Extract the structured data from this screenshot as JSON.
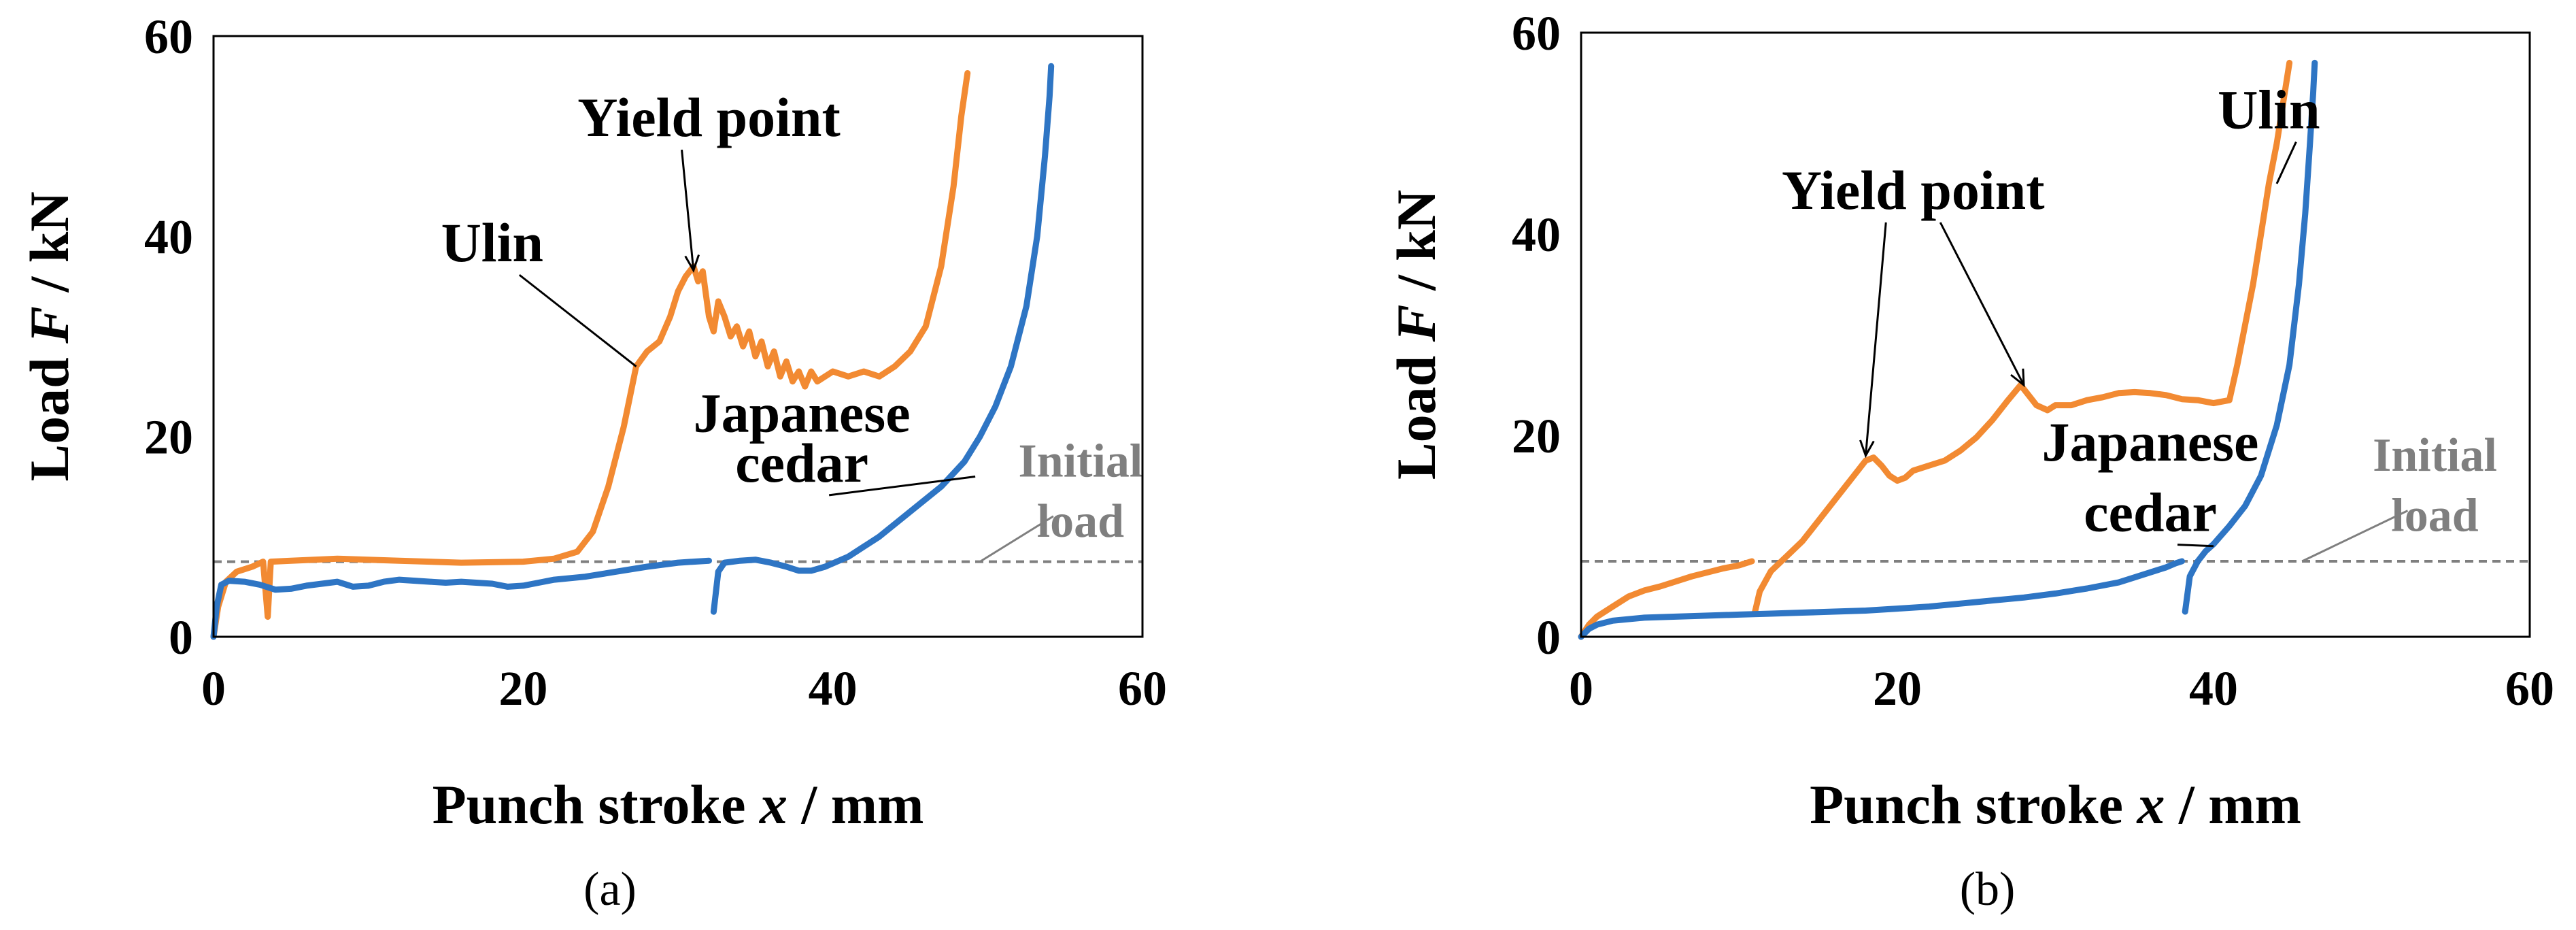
{
  "chart_data": [
    {
      "type": "line",
      "panel": "(a)",
      "xlabel_prefix": "Punch stroke ",
      "xlabel_var": "x",
      "xlabel_suffix": " / mm",
      "ylabel_prefix": "Load ",
      "ylabel_var": "F",
      "ylabel_suffix": " / kN",
      "xlim": [
        0,
        60
      ],
      "ylim": [
        0,
        60
      ],
      "xticks": [
        0,
        20,
        40,
        60
      ],
      "yticks": [
        0,
        20,
        40,
        60
      ],
      "xtick_labels": [
        "0",
        "20",
        "40",
        "60"
      ],
      "ytick_labels": [
        "0",
        "20",
        "40",
        "60"
      ],
      "initial_load": 7.5,
      "series": [
        {
          "name": "Ulin",
          "color": "#f28a32",
          "segments": [
            [
              [
                0,
                0
              ],
              [
                0.3,
                3
              ],
              [
                0.8,
                5.5
              ],
              [
                1.5,
                6.5
              ],
              [
                2.5,
                7
              ],
              [
                3.2,
                7.5
              ],
              [
                3.5,
                2
              ],
              [
                3.7,
                7.5
              ],
              [
                5,
                7.6
              ],
              [
                8,
                7.8
              ],
              [
                12,
                7.6
              ],
              [
                16,
                7.4
              ],
              [
                20,
                7.5
              ],
              [
                22,
                7.8
              ],
              [
                23.5,
                8.5
              ],
              [
                24.5,
                10.5
              ],
              [
                25.5,
                15
              ],
              [
                26.5,
                21
              ],
              [
                27.3,
                27
              ],
              [
                28,
                28.5
              ],
              [
                28.8,
                29.5
              ],
              [
                29.5,
                32
              ],
              [
                30,
                34.5
              ],
              [
                30.5,
                36
              ],
              [
                31,
                37
              ],
              [
                31.3,
                35.5
              ],
              [
                31.6,
                36.5
              ],
              [
                32,
                32
              ],
              [
                32.3,
                30.5
              ],
              [
                32.6,
                33.5
              ],
              [
                33,
                32
              ],
              [
                33.4,
                30
              ],
              [
                33.8,
                31
              ],
              [
                34.2,
                29
              ],
              [
                34.6,
                30.5
              ],
              [
                35,
                28
              ],
              [
                35.4,
                29.5
              ],
              [
                35.8,
                27
              ],
              [
                36.2,
                28.5
              ],
              [
                36.6,
                26
              ],
              [
                37,
                27.5
              ],
              [
                37.4,
                25.5
              ],
              [
                37.8,
                26.5
              ],
              [
                38.2,
                25
              ],
              [
                38.6,
                26.5
              ],
              [
                39,
                25.5
              ],
              [
                40,
                26.5
              ],
              [
                41,
                26
              ],
              [
                42,
                26.5
              ],
              [
                43,
                26
              ],
              [
                44,
                27
              ],
              [
                45,
                28.5
              ],
              [
                46,
                31
              ],
              [
                47,
                37
              ],
              [
                47.8,
                45
              ],
              [
                48.3,
                52
              ],
              [
                48.7,
                56.3
              ]
            ]
          ]
        },
        {
          "name": "Japanese cedar",
          "color": "#2e75c4",
          "segments": [
            [
              [
                0,
                0
              ],
              [
                0.2,
                3
              ],
              [
                0.5,
                5.2
              ],
              [
                1,
                5.6
              ],
              [
                2,
                5.5
              ],
              [
                3,
                5.2
              ],
              [
                4,
                4.7
              ],
              [
                5,
                4.8
              ],
              [
                6,
                5.1
              ],
              [
                7,
                5.3
              ],
              [
                8,
                5.5
              ],
              [
                9,
                5.0
              ],
              [
                10,
                5.1
              ],
              [
                11,
                5.5
              ],
              [
                12,
                5.7
              ],
              [
                13,
                5.6
              ],
              [
                14,
                5.5
              ],
              [
                15,
                5.4
              ],
              [
                16,
                5.5
              ],
              [
                18,
                5.3
              ],
              [
                19,
                5.0
              ],
              [
                20,
                5.1
              ],
              [
                21,
                5.4
              ],
              [
                22,
                5.7
              ],
              [
                24,
                6.0
              ],
              [
                26,
                6.5
              ],
              [
                28,
                7.0
              ],
              [
                30,
                7.4
              ],
              [
                31,
                7.5
              ],
              [
                32,
                7.6
              ]
            ],
            [
              [
                32.3,
                2.5
              ],
              [
                32.6,
                6.5
              ],
              [
                33,
                7.4
              ],
              [
                34,
                7.6
              ],
              [
                35,
                7.7
              ],
              [
                36,
                7.4
              ],
              [
                37,
                7.0
              ],
              [
                37.8,
                6.6
              ],
              [
                38.6,
                6.6
              ],
              [
                39.5,
                7.0
              ],
              [
                41,
                8
              ],
              [
                43,
                10
              ],
              [
                45,
                12.5
              ],
              [
                47,
                15
              ],
              [
                48.5,
                17.5
              ],
              [
                49.5,
                20
              ],
              [
                50.5,
                23
              ],
              [
                51.5,
                27
              ],
              [
                52.5,
                33
              ],
              [
                53.2,
                40
              ],
              [
                53.7,
                48
              ],
              [
                54,
                54
              ],
              [
                54.1,
                57
              ]
            ]
          ]
        }
      ],
      "annotations": [
        {
          "text": "Yield point",
          "x": 32,
          "y": 50,
          "target": [
            31,
            36.6
          ]
        },
        {
          "text": "Ulin",
          "x": 18,
          "y": 37.5,
          "target": [
            27.3,
            27
          ]
        },
        {
          "text": "Japanese",
          "x": 38,
          "y": 20.5
        },
        {
          "text": "cedar",
          "x": 38,
          "y": 15.5,
          "target": [
            49.2,
            16
          ]
        },
        {
          "text": "Initial",
          "x": 56,
          "y": 16
        },
        {
          "text": "load",
          "x": 56,
          "y": 10,
          "target": [
            49.5,
            7.5
          ]
        }
      ]
    },
    {
      "type": "line",
      "panel": "(b)",
      "xlabel_prefix": "Punch stroke ",
      "xlabel_var": "x",
      "xlabel_suffix": " / mm",
      "ylabel_prefix": "Load ",
      "ylabel_var": "F",
      "ylabel_suffix": " / kN",
      "xlim": [
        0,
        60
      ],
      "ylim": [
        0,
        60
      ],
      "xticks": [
        0,
        20,
        40,
        60
      ],
      "yticks": [
        0,
        20,
        40,
        60
      ],
      "xtick_labels": [
        "0",
        "20",
        "40",
        "60"
      ],
      "ytick_labels": [
        "0",
        "20",
        "40",
        "60"
      ],
      "initial_load": 7.5,
      "series": [
        {
          "name": "Ulin",
          "color": "#f28a32",
          "segments": [
            [
              [
                0,
                0
              ],
              [
                0.5,
                1.2
              ],
              [
                1,
                2
              ],
              [
                2,
                3
              ],
              [
                3,
                4
              ],
              [
                4,
                4.6
              ],
              [
                5,
                5
              ],
              [
                6,
                5.5
              ],
              [
                7,
                6
              ],
              [
                8,
                6.4
              ],
              [
                9,
                6.8
              ],
              [
                10,
                7.1
              ],
              [
                10.8,
                7.5
              ]
            ],
            [
              [
                11,
                2.5
              ],
              [
                11.3,
                4.5
              ],
              [
                12,
                6.5
              ],
              [
                13,
                8
              ],
              [
                14,
                9.5
              ],
              [
                15,
                11.5
              ],
              [
                16,
                13.5
              ],
              [
                17,
                15.5
              ],
              [
                18,
                17.5
              ],
              [
                18.5,
                17.8
              ],
              [
                19,
                17
              ],
              [
                19.5,
                16
              ],
              [
                20,
                15.5
              ],
              [
                20.5,
                15.8
              ],
              [
                21,
                16.5
              ],
              [
                22,
                17
              ],
              [
                23,
                17.5
              ],
              [
                24,
                18.5
              ],
              [
                25,
                19.8
              ],
              [
                26,
                21.5
              ],
              [
                27,
                23.5
              ],
              [
                27.8,
                25
              ],
              [
                28.3,
                24
              ],
              [
                28.8,
                23
              ],
              [
                29.5,
                22.5
              ],
              [
                30,
                23
              ],
              [
                31,
                23
              ],
              [
                32,
                23.5
              ],
              [
                33,
                23.8
              ],
              [
                34,
                24.2
              ],
              [
                35,
                24.3
              ],
              [
                36,
                24.2
              ],
              [
                37,
                24.0
              ],
              [
                38,
                23.6
              ],
              [
                39,
                23.5
              ],
              [
                40,
                23.2
              ],
              [
                41,
                23.5
              ],
              [
                41.5,
                27
              ],
              [
                42,
                31
              ],
              [
                42.5,
                35
              ],
              [
                43,
                40
              ],
              [
                43.5,
                45
              ],
              [
                44,
                49
              ],
              [
                44.5,
                54
              ],
              [
                44.8,
                57
              ]
            ]
          ]
        },
        {
          "name": "Japanese cedar",
          "color": "#2e75c4",
          "segments": [
            [
              [
                0,
                0
              ],
              [
                0.5,
                0.8
              ],
              [
                1,
                1.2
              ],
              [
                2,
                1.6
              ],
              [
                4,
                1.9
              ],
              [
                6,
                2.0
              ],
              [
                8,
                2.1
              ],
              [
                10,
                2.2
              ],
              [
                12,
                2.3
              ],
              [
                14,
                2.4
              ],
              [
                16,
                2.5
              ],
              [
                18,
                2.6
              ],
              [
                20,
                2.8
              ],
              [
                22,
                3.0
              ],
              [
                24,
                3.3
              ],
              [
                26,
                3.6
              ],
              [
                28,
                3.9
              ],
              [
                30,
                4.3
              ],
              [
                32,
                4.8
              ],
              [
                34,
                5.4
              ],
              [
                35,
                5.9
              ],
              [
                36,
                6.4
              ],
              [
                37,
                6.9
              ],
              [
                37.6,
                7.3
              ],
              [
                38,
                7.5
              ]
            ],
            [
              [
                38.2,
                2.5
              ],
              [
                38.5,
                6
              ],
              [
                39,
                7.5
              ],
              [
                39.5,
                8.5
              ],
              [
                40,
                9.2
              ],
              [
                41,
                11
              ],
              [
                42,
                13
              ],
              [
                43,
                16
              ],
              [
                44,
                21
              ],
              [
                44.8,
                27
              ],
              [
                45.4,
                35
              ],
              [
                45.8,
                42
              ],
              [
                46.1,
                49
              ],
              [
                46.3,
                54
              ],
              [
                46.4,
                57
              ]
            ]
          ]
        }
      ],
      "annotations": [
        {
          "text": "Yield point",
          "x": 21,
          "y": 42.5,
          "targets": [
            [
              18,
              18
            ],
            [
              28,
              25
            ]
          ]
        },
        {
          "text": "Ulin",
          "x": 43.5,
          "y": 50.5,
          "target": [
            44,
            45
          ]
        },
        {
          "text": "Japanese",
          "x": 36,
          "y": 17.5
        },
        {
          "text": "cedar",
          "x": 36,
          "y": 10.5,
          "target": [
            40,
            9
          ]
        },
        {
          "text": "Initial",
          "x": 54,
          "y": 16.5
        },
        {
          "text": "load",
          "x": 54,
          "y": 10.5,
          "target": [
            45.6,
            7.5
          ]
        }
      ]
    }
  ]
}
